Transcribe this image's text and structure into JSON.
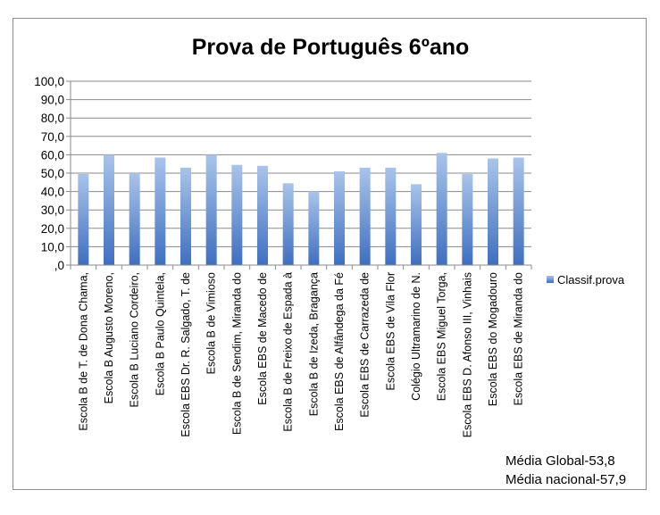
{
  "chart_data": {
    "type": "bar",
    "title": "Prova de Português 6ºano",
    "categories": [
      "Escola B de T. de Dona Chama,",
      "Escola B Augusto Moreno,",
      "Escola B Luciano Cordeiro,",
      "Escola B Paulo Quintela,",
      "Escola EBS Dr. R. Salgado, T. de",
      "Escola B de Vimioso",
      "Escola B de Sendim, Miranda do",
      "Escola EBS de Macedo de",
      "Escola B de Freixo de Espada à",
      "Escola B de Izeda, Bragança",
      "Escola EBS de Alfândega da Fé",
      "Escola EBS de Carrazeda de",
      "Escola EBS de Vila Flor",
      "Colégio Ultramarino de N.",
      "Escola EBS Miguel Torga,",
      "Escola EBS D. Afonso III, Vinhais",
      "Escola EBS do Mogadouro",
      "Escola EBS de Miranda do"
    ],
    "series": [
      {
        "name": "Classif.prova",
        "values": [
          49.5,
          60.0,
          50.0,
          58.5,
          53.0,
          60.0,
          54.5,
          54.0,
          44.5,
          40.0,
          51.0,
          53.0,
          53.0,
          44.0,
          61.0,
          49.5,
          58.0,
          58.5
        ]
      }
    ],
    "yticks": [
      "100,0",
      "90,0",
      "80,0",
      "70,0",
      "60,0",
      "50,0",
      "40,0",
      "30,0",
      "20,0",
      "10,0",
      ",0"
    ],
    "ylim": [
      0,
      100
    ],
    "grid": true,
    "legend_position": "right",
    "bar_color_top": "#a9c4ea",
    "bar_color_bottom": "#3f6fc0",
    "notes": [
      "Média Global-53,8",
      "Média nacional-57,9"
    ]
  }
}
